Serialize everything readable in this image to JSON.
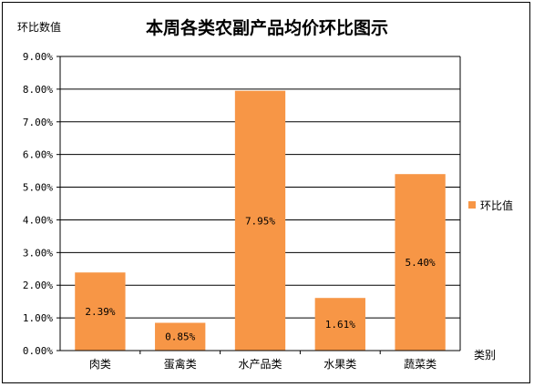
{
  "chart_data": {
    "type": "bar",
    "title": "本周各类农副产品均价环比图示",
    "ylabel": "环比数值",
    "xlabel": "类别",
    "categories": [
      "肉类",
      "蛋禽类",
      "水产品类",
      "水果类",
      "蔬菜类"
    ],
    "series": [
      {
        "name": "环比值",
        "values": [
          2.39,
          0.85,
          7.95,
          1.61,
          5.4
        ],
        "labels": [
          "2.39%",
          "0.85%",
          "7.95%",
          "1.61%",
          "5.40%"
        ],
        "color": "#F79646"
      }
    ],
    "ylim": [
      0,
      9
    ],
    "yticks": [
      "0.00%",
      "1.00%",
      "2.00%",
      "3.00%",
      "4.00%",
      "5.00%",
      "6.00%",
      "7.00%",
      "8.00%",
      "9.00%"
    ],
    "grid": true,
    "legend_position": "right"
  }
}
